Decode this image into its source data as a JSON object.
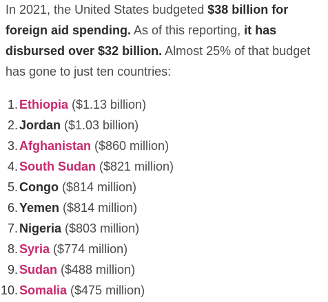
{
  "intro": {
    "t1": "In 2021, the United States budgeted ",
    "b1": "$38 billion for foreign aid spending.",
    "t2": " As of this reporting, ",
    "b2": "it has disbursed over $32 billion.",
    "t3": " Almost 25% of that budget has gone to just ten countries:"
  },
  "colors": {
    "link": "#c8286d",
    "bold": "#2b2b2b",
    "text": "#4a4a4a"
  },
  "countries": [
    {
      "num": "1.",
      "name": "Ethiopia",
      "amount": "($1.13 billion)",
      "link": true
    },
    {
      "num": "2.",
      "name": "Jordan",
      "amount": "($1.03 billion)",
      "link": false
    },
    {
      "num": "3.",
      "name": "Afghanistan",
      "amount": "($860 million)",
      "link": true
    },
    {
      "num": "4.",
      "name": "South Sudan",
      "amount": "($821 million)",
      "link": true
    },
    {
      "num": "5.",
      "name": "Congo",
      "amount": "($814 million)",
      "link": false
    },
    {
      "num": "6.",
      "name": "Yemen",
      "amount": "($814 million)",
      "link": false
    },
    {
      "num": "7.",
      "name": "Nigeria",
      "amount": "($803 million)",
      "link": false
    },
    {
      "num": "8.",
      "name": "Syria",
      "amount": "($774 million)",
      "link": true
    },
    {
      "num": "9.",
      "name": "Sudan",
      "amount": "($488 million)",
      "link": true
    },
    {
      "num": "10.",
      "name": "Somalia",
      "amount": "($475 million)",
      "link": true
    }
  ]
}
